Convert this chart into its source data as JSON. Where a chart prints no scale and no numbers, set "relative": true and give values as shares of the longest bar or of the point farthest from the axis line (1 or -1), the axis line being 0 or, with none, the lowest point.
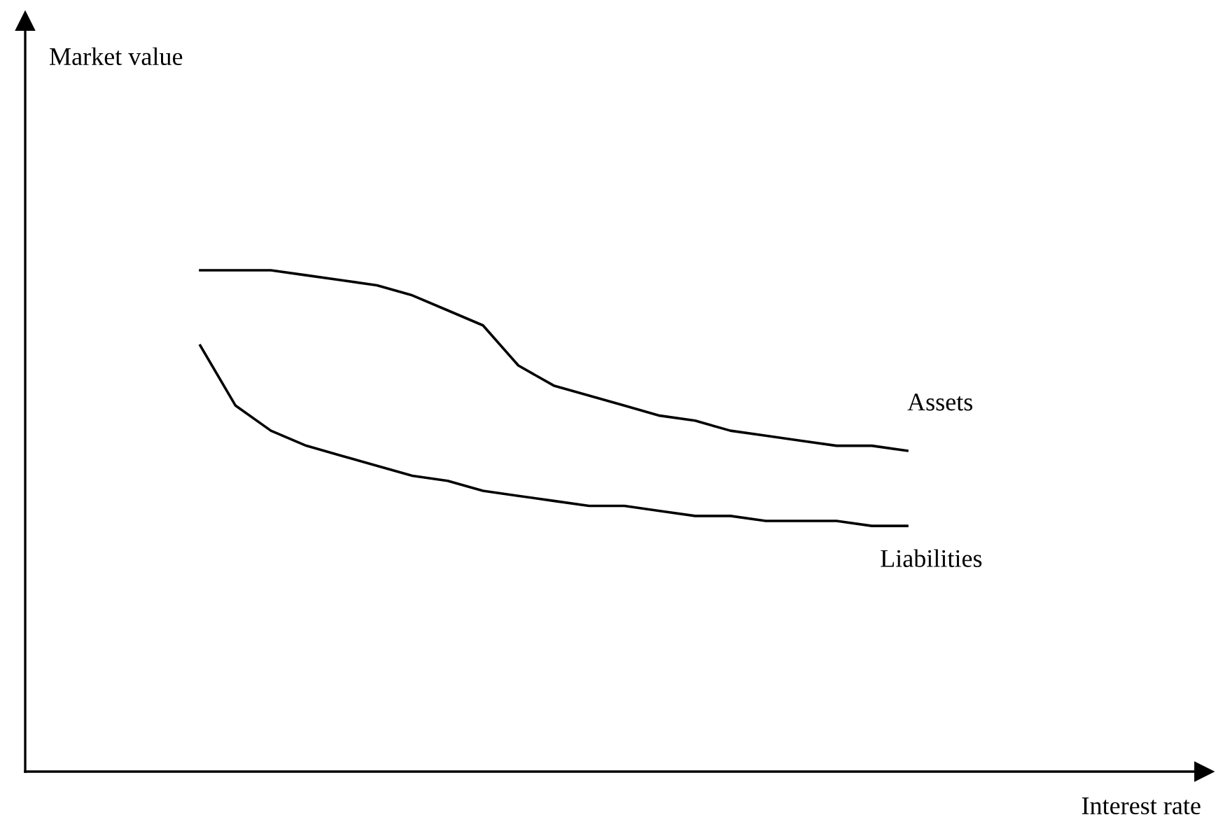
{
  "chart_data": {
    "type": "line",
    "relative": true,
    "annotations": [
      "Market value",
      "Interest rate"
    ],
    "legend": false,
    "marker": "none",
    "line_style": "solid",
    "categories": [
      null,
      null,
      null,
      null,
      null,
      null,
      null,
      null,
      null,
      null,
      null,
      null,
      null,
      null,
      null,
      null,
      null,
      null,
      null,
      null,
      null
    ],
    "series": [
      {
        "name": "Assets",
        "color": "#000000",
        "values": [
          1.0,
          1.0,
          1.0,
          0.99,
          0.98,
          0.97,
          0.95,
          0.92,
          0.89,
          0.81,
          0.77,
          0.75,
          0.73,
          0.71,
          0.7,
          0.68,
          0.67,
          0.66,
          0.65,
          0.65,
          0.64
        ]
      },
      {
        "name": "Liabilities",
        "color": "#000000",
        "values": [
          0.85,
          0.73,
          0.68,
          0.65,
          0.63,
          0.61,
          0.59,
          0.58,
          0.56,
          0.55,
          0.54,
          0.53,
          0.53,
          0.52,
          0.51,
          0.51,
          0.5,
          0.5,
          0.5,
          0.49,
          0.49
        ]
      }
    ]
  }
}
